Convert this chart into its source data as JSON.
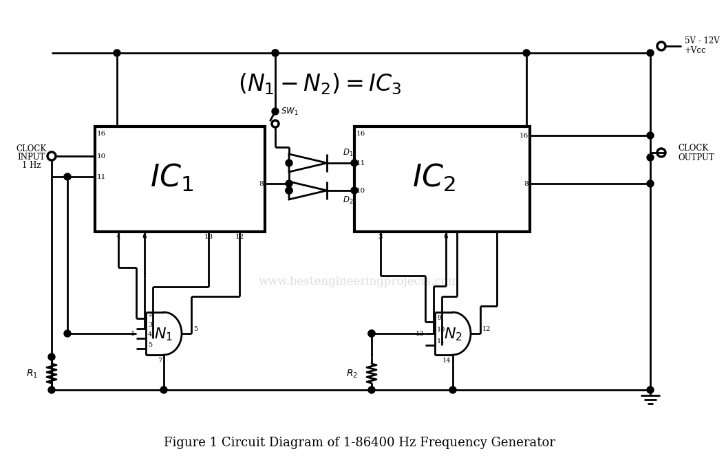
{
  "bg_color": "#ffffff",
  "lc": "#000000",
  "lw": 2.0,
  "lw_thick": 3.0,
  "dot_r": 5,
  "title": "Figure 1 Circuit Diagram of 1-86400 Hz Frequency Generator",
  "watermark": "www.bestengineeringprojects.com",
  "ic1_label": "$IC_1$",
  "ic2_label": "$IC_2$",
  "n1_label": "$N_1$",
  "n2_label": "$N_2$",
  "r1_label": "$R_1$",
  "r2_label": "$R_2$",
  "d1_label": "$D_1$",
  "d2_label": "$D_2$",
  "sw_label": "$SW_1$",
  "formula": "$(N_1 - N_2) = IC_3$",
  "vcc_top": "5V - 12V",
  "vcc_bot": "+Vcc",
  "clk_in_1": "CLOCK",
  "clk_in_2": "INPUT",
  "clk_in_3": "1 Hz",
  "clk_out_1": "CLOCK",
  "clk_out_2": "OUTPUT"
}
